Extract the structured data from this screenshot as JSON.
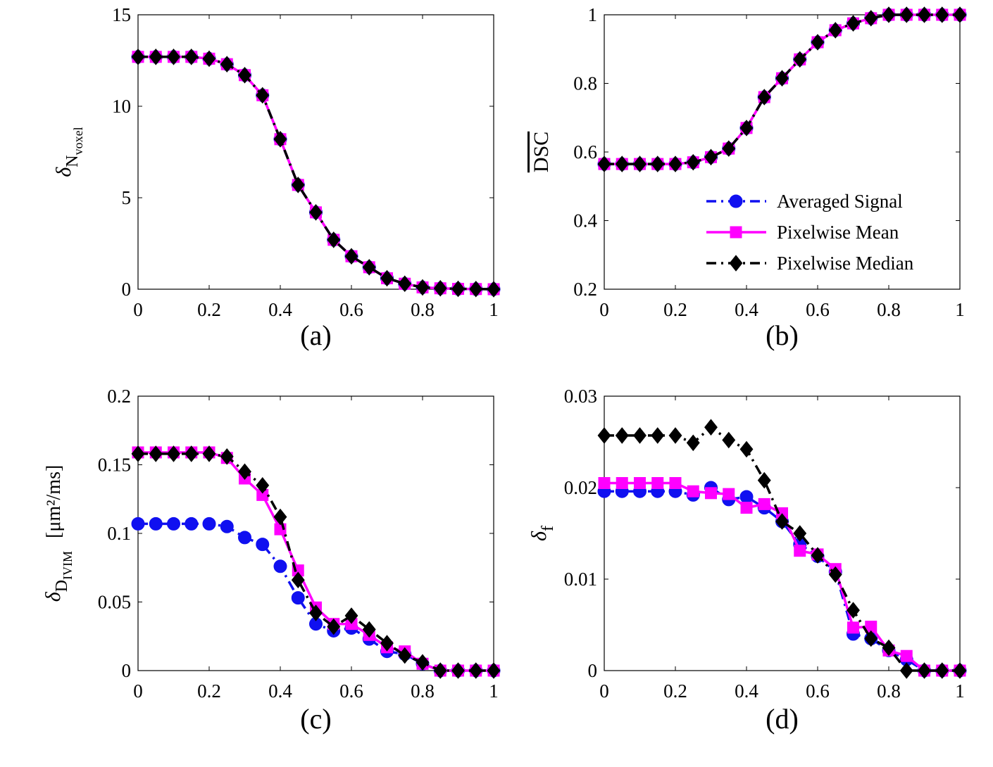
{
  "colors": {
    "averaged": "#1010f0",
    "mean": "#ff00ff",
    "median": "#000000",
    "axis": "#000000"
  },
  "legend": {
    "entries": [
      {
        "label": "Averaged Signal",
        "style": "dashdot",
        "marker": "circle",
        "color": "#1010f0"
      },
      {
        "label": "Pixelwise Mean",
        "style": "solid",
        "marker": "square",
        "color": "#ff00ff"
      },
      {
        "label": "Pixelwise Median",
        "style": "dashdot",
        "marker": "diamond",
        "color": "#000000"
      }
    ]
  },
  "chart_data": [
    {
      "id": "a",
      "type": "line",
      "panel_label": "(a)",
      "ylabel_main": "δ",
      "ylabel_sub": "N",
      "ylabel_subsub": "voxel",
      "ylabel_suffix": "",
      "xlim": [
        0,
        1
      ],
      "ylim": [
        0,
        15
      ],
      "xticks": [
        0,
        0.2,
        0.4,
        0.6,
        0.8,
        1
      ],
      "xtick_labels": [
        "0",
        "0.2",
        "0.4",
        "0.6",
        "0.8",
        "1"
      ],
      "yticks": [
        0,
        5,
        10,
        15
      ],
      "ytick_labels": [
        "0",
        "5",
        "10",
        "15"
      ],
      "x": [
        0,
        0.05,
        0.1,
        0.15,
        0.2,
        0.25,
        0.3,
        0.35,
        0.4,
        0.45,
        0.5,
        0.55,
        0.6,
        0.65,
        0.7,
        0.75,
        0.8,
        0.85,
        0.9,
        0.95,
        1
      ],
      "series": [
        {
          "name": "Averaged Signal",
          "values": [
            12.7,
            12.7,
            12.7,
            12.7,
            12.6,
            12.3,
            11.7,
            10.6,
            8.2,
            5.7,
            4.2,
            2.7,
            1.8,
            1.2,
            0.6,
            0.3,
            0.1,
            0.05,
            0.02,
            0.01,
            0
          ]
        },
        {
          "name": "Pixelwise Mean",
          "values": [
            12.7,
            12.7,
            12.7,
            12.7,
            12.6,
            12.3,
            11.7,
            10.6,
            8.2,
            5.7,
            4.2,
            2.7,
            1.8,
            1.2,
            0.6,
            0.3,
            0.1,
            0.05,
            0.02,
            0.01,
            0
          ]
        },
        {
          "name": "Pixelwise Median",
          "values": [
            12.7,
            12.7,
            12.7,
            12.7,
            12.6,
            12.3,
            11.7,
            10.6,
            8.2,
            5.7,
            4.2,
            2.7,
            1.8,
            1.2,
            0.6,
            0.3,
            0.1,
            0.05,
            0.02,
            0.01,
            0
          ]
        }
      ]
    },
    {
      "id": "b",
      "type": "line",
      "panel_label": "(b)",
      "ylabel_main": "DSC",
      "ylabel_overline": true,
      "xlim": [
        0,
        1
      ],
      "ylim": [
        0.2,
        1
      ],
      "xticks": [
        0,
        0.2,
        0.4,
        0.6,
        0.8,
        1
      ],
      "xtick_labels": [
        "0",
        "0.2",
        "0.4",
        "0.6",
        "0.8",
        "1"
      ],
      "yticks": [
        0.2,
        0.4,
        0.6,
        0.8,
        1
      ],
      "ytick_labels": [
        "0.2",
        "0.4",
        "0.6",
        "0.8",
        "1"
      ],
      "x": [
        0,
        0.05,
        0.1,
        0.15,
        0.2,
        0.25,
        0.3,
        0.35,
        0.4,
        0.45,
        0.5,
        0.55,
        0.6,
        0.65,
        0.7,
        0.75,
        0.8,
        0.85,
        0.9,
        0.95,
        1
      ],
      "series": [
        {
          "name": "Averaged Signal",
          "values": [
            0.565,
            0.565,
            0.565,
            0.565,
            0.565,
            0.57,
            0.585,
            0.61,
            0.67,
            0.76,
            0.815,
            0.87,
            0.92,
            0.955,
            0.975,
            0.99,
            1,
            1,
            1,
            1,
            1
          ]
        },
        {
          "name": "Pixelwise Mean",
          "values": [
            0.565,
            0.565,
            0.565,
            0.565,
            0.565,
            0.57,
            0.585,
            0.61,
            0.67,
            0.76,
            0.815,
            0.87,
            0.92,
            0.955,
            0.975,
            0.99,
            1,
            1,
            1,
            1,
            1
          ]
        },
        {
          "name": "Pixelwise Median",
          "values": [
            0.565,
            0.565,
            0.565,
            0.565,
            0.565,
            0.57,
            0.585,
            0.61,
            0.67,
            0.76,
            0.815,
            0.87,
            0.92,
            0.955,
            0.975,
            0.99,
            1,
            1,
            1,
            1,
            1
          ]
        }
      ],
      "show_legend": true
    },
    {
      "id": "c",
      "type": "line",
      "panel_label": "(c)",
      "ylabel_main": "δ",
      "ylabel_sub": "D",
      "ylabel_subsub": "IVIM",
      "ylabel_suffix": "[μm²/ms]",
      "xlim": [
        0,
        1
      ],
      "ylim": [
        0,
        0.2
      ],
      "xticks": [
        0,
        0.2,
        0.4,
        0.6,
        0.8,
        1
      ],
      "xtick_labels": [
        "0",
        "0.2",
        "0.4",
        "0.6",
        "0.8",
        "1"
      ],
      "yticks": [
        0,
        0.05,
        0.1,
        0.15,
        0.2
      ],
      "ytick_labels": [
        "0",
        "0.05",
        "0.1",
        "0.15",
        "0.2"
      ],
      "x": [
        0,
        0.05,
        0.1,
        0.15,
        0.2,
        0.25,
        0.3,
        0.35,
        0.4,
        0.45,
        0.5,
        0.55,
        0.6,
        0.65,
        0.7,
        0.75,
        0.8,
        0.85,
        0.9,
        0.95,
        1
      ],
      "series": [
        {
          "name": "Averaged Signal",
          "values": [
            0.107,
            0.107,
            0.107,
            0.107,
            0.107,
            0.105,
            0.097,
            0.092,
            0.076,
            0.053,
            0.034,
            0.029,
            0.031,
            0.023,
            0.014,
            0.012,
            0.005,
            0,
            0,
            0,
            0
          ]
        },
        {
          "name": "Pixelwise Mean",
          "values": [
            0.159,
            0.159,
            0.159,
            0.159,
            0.159,
            0.155,
            0.14,
            0.128,
            0.103,
            0.073,
            0.046,
            0.034,
            0.034,
            0.026,
            0.017,
            0.014,
            0.005,
            0,
            0,
            0,
            0
          ]
        },
        {
          "name": "Pixelwise Median",
          "values": [
            0.158,
            0.158,
            0.158,
            0.158,
            0.158,
            0.156,
            0.145,
            0.135,
            0.112,
            0.066,
            0.042,
            0.032,
            0.04,
            0.03,
            0.02,
            0.011,
            0.006,
            0,
            0,
            0,
            0
          ]
        }
      ]
    },
    {
      "id": "d",
      "type": "line",
      "panel_label": "(d)",
      "ylabel_main": "δ",
      "ylabel_sub": "f",
      "ylabel_subsub": "",
      "ylabel_suffix": "",
      "xlim": [
        0,
        1
      ],
      "ylim": [
        0,
        0.03
      ],
      "xticks": [
        0,
        0.2,
        0.4,
        0.6,
        0.8,
        1
      ],
      "xtick_labels": [
        "0",
        "0.2",
        "0.4",
        "0.6",
        "0.8",
        "1"
      ],
      "yticks": [
        0,
        0.01,
        0.02,
        0.03
      ],
      "ytick_labels": [
        "0",
        "0.01",
        "0.02",
        "0.03"
      ],
      "x": [
        0,
        0.05,
        0.1,
        0.15,
        0.2,
        0.25,
        0.3,
        0.35,
        0.4,
        0.45,
        0.5,
        0.55,
        0.6,
        0.65,
        0.7,
        0.75,
        0.8,
        0.85,
        0.9,
        0.95,
        1
      ],
      "series": [
        {
          "name": "Averaged Signal",
          "values": [
            0.0196,
            0.0196,
            0.0196,
            0.0196,
            0.0196,
            0.0192,
            0.02,
            0.0187,
            0.019,
            0.0178,
            0.0163,
            0.0138,
            0.0125,
            0.0108,
            0.004,
            0.0035,
            0.0022,
            0.0012,
            0,
            0,
            0
          ]
        },
        {
          "name": "Pixelwise Mean",
          "values": [
            0.0205,
            0.0205,
            0.0205,
            0.0205,
            0.0205,
            0.0196,
            0.0194,
            0.0193,
            0.0178,
            0.0182,
            0.0172,
            0.0131,
            0.0127,
            0.0111,
            0.0047,
            0.0048,
            0.0022,
            0.0016,
            0,
            0,
            0
          ]
        },
        {
          "name": "Pixelwise Median",
          "values": [
            0.0257,
            0.0257,
            0.0257,
            0.0257,
            0.0257,
            0.0249,
            0.0266,
            0.0252,
            0.0242,
            0.0208,
            0.0163,
            0.015,
            0.0126,
            0.0105,
            0.0066,
            0.0035,
            0.0025,
            0,
            0,
            0,
            0
          ]
        }
      ]
    }
  ]
}
